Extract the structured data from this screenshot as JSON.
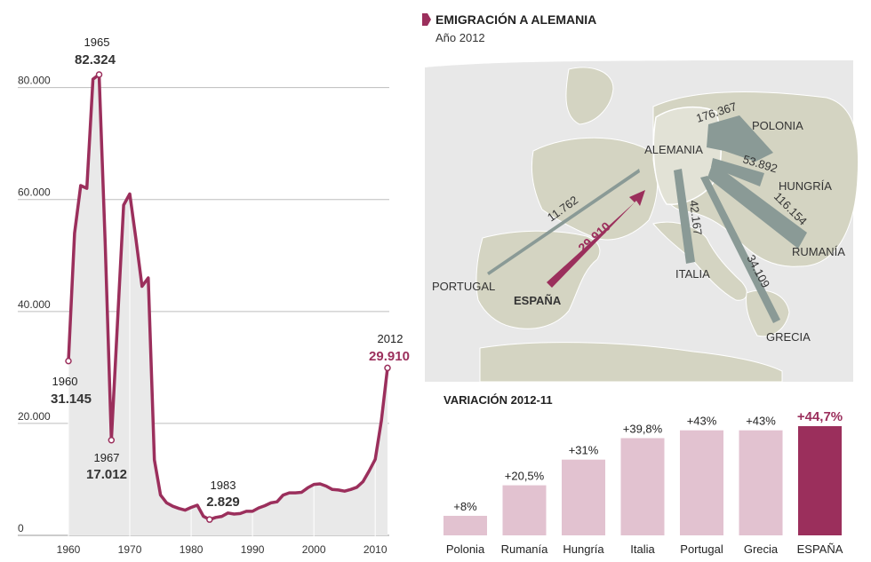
{
  "header": {
    "title": "EMIGRACIÓN A ALEMANIA",
    "subtitle": "Año 2012",
    "variation_title": "VARIACIÓN 2012-11"
  },
  "colors": {
    "accent": "#9b2f5c",
    "pink": "#e2c2d0",
    "arrow_gray": "#8a9a96",
    "land": "#d4d4c2",
    "sea": "#e8e8e8",
    "area_fill": "#e9e9e9"
  },
  "map": {
    "labels": {
      "alemania": "ALEMANIA",
      "polonia": "POLONIA",
      "hungria": "HUNGRÍA",
      "rumania": "RUMANÍA",
      "italia": "ITALIA",
      "grecia": "GRECIA",
      "portugal": "PORTUGAL",
      "espana": "ESPAÑA"
    },
    "flows": {
      "polonia": "176.367",
      "hungria": "53.892",
      "rumania": "116.154",
      "italia": "42.167",
      "grecia": "34.109",
      "portugal": "11.762",
      "espana": "29.910"
    }
  },
  "annotations": {
    "a1965_year": "1965",
    "a1965_val": "82.324",
    "a1960_year": "1960",
    "a1960_val": "31.145",
    "a1967_year": "1967",
    "a1967_val": "17.012",
    "a1983_year": "1983",
    "a1983_val": "2.829",
    "a2012_year": "2012",
    "a2012_val": "29.910"
  },
  "chart_data": [
    {
      "type": "area",
      "title": "",
      "xlabel": "",
      "ylabel": "",
      "xlim": [
        1960,
        2012
      ],
      "ylim": [
        0,
        82324
      ],
      "x_ticks": [
        1960,
        1970,
        1980,
        1990,
        2000,
        2010
      ],
      "x_tick_labels": [
        "1960",
        "1970",
        "1980",
        "1990",
        "2000",
        "2010"
      ],
      "y_ticks": [
        0,
        20000,
        40000,
        60000,
        80000
      ],
      "y_tick_labels": [
        "0",
        "20.000",
        "40.000",
        "60.000",
        "80.000"
      ],
      "grid": true,
      "x": [
        1960,
        1961,
        1962,
        1963,
        1964,
        1965,
        1966,
        1967,
        1968,
        1969,
        1970,
        1971,
        1972,
        1973,
        1974,
        1975,
        1976,
        1977,
        1978,
        1979,
        1980,
        1981,
        1982,
        1983,
        1984,
        1985,
        1986,
        1987,
        1988,
        1989,
        1990,
        1991,
        1992,
        1993,
        1994,
        1995,
        1996,
        1997,
        1998,
        1999,
        2000,
        2001,
        2002,
        2003,
        2004,
        2005,
        2006,
        2007,
        2008,
        2009,
        2010,
        2011,
        2012
      ],
      "y": [
        31145,
        54000,
        62500,
        62000,
        81500,
        82324,
        52000,
        17012,
        38000,
        59000,
        61000,
        53000,
        44500,
        46000,
        13500,
        7200,
        5800,
        5200,
        4800,
        4500,
        5000,
        5400,
        3400,
        2829,
        3200,
        3400,
        4000,
        3800,
        3900,
        4300,
        4300,
        4900,
        5300,
        5800,
        6000,
        7200,
        7600,
        7600,
        7700,
        8500,
        9100,
        9200,
        8800,
        8200,
        8100,
        7900,
        8200,
        8600,
        9600,
        11500,
        13600,
        20500,
        29910
      ]
    },
    {
      "type": "bar",
      "title": "",
      "categories": [
        "Polonia",
        "Rumanía",
        "Hungría",
        "Italia",
        "Portugal",
        "Grecia",
        "ESPAÑA"
      ],
      "values": [
        8,
        20.5,
        31,
        39.8,
        43,
        43,
        44.7
      ],
      "value_labels": [
        "+8%",
        "+20,5%",
        "+31%",
        "+39,8%",
        "+43%",
        "+43%",
        "+44,7%"
      ],
      "highlight": "ESPAÑA",
      "ylim": [
        0,
        44.7
      ]
    }
  ]
}
